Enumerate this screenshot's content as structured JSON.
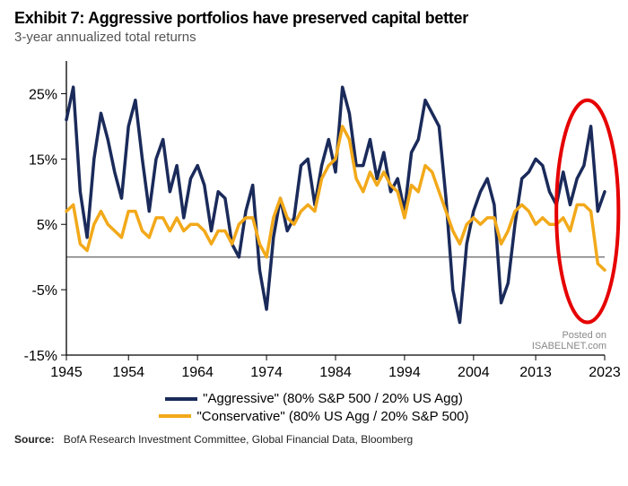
{
  "title": "Exhibit 7: Aggressive portfolios have preserved capital better",
  "subtitle": "3-year annualized total returns",
  "source_label": "Source:",
  "source_text": "BofA Research Investment Committee, Global Financial Data, Bloomberg",
  "watermark_top": "Posted on",
  "watermark_bottom": "ISABELNET.com",
  "legend_aggressive": "\"Aggressive\" (80% S&P 500 / 20% US Agg)",
  "legend_conservative": "\"Conservative\" (80% US Agg / 20% S&P 500)",
  "chart": {
    "type": "line",
    "background_color": "#ffffff",
    "axis_color": "#000000",
    "zero_line_color": "#555555",
    "font_family": "Arial",
    "tick_fontsize": 16,
    "title_fontsize": 18,
    "subtitle_fontsize": 15,
    "xlim": [
      1945,
      2023
    ],
    "ylim": [
      -15,
      30
    ],
    "yticks": [
      -15,
      -5,
      5,
      15,
      25
    ],
    "ytick_labels": [
      "-15%",
      "-5%",
      "5%",
      "15%",
      "25%"
    ],
    "xticks": [
      1945,
      1954,
      1964,
      1974,
      1984,
      1994,
      2004,
      2013,
      2023
    ],
    "xtick_labels": [
      "1945",
      "1954",
      "1964",
      "1974",
      "1984",
      "1994",
      "2004",
      "2013",
      "2023"
    ],
    "series": [
      {
        "key": "aggressive",
        "color": "#1a2a5a",
        "line_width": 3.5,
        "x": [
          1945,
          1946,
          1947,
          1948,
          1949,
          1950,
          1951,
          1952,
          1953,
          1954,
          1955,
          1956,
          1957,
          1958,
          1959,
          1960,
          1961,
          1962,
          1963,
          1964,
          1965,
          1966,
          1967,
          1968,
          1969,
          1970,
          1971,
          1972,
          1973,
          1974,
          1975,
          1976,
          1977,
          1978,
          1979,
          1980,
          1981,
          1982,
          1983,
          1984,
          1985,
          1986,
          1987,
          1988,
          1989,
          1990,
          1991,
          1992,
          1993,
          1994,
          1995,
          1996,
          1997,
          1998,
          1999,
          2000,
          2001,
          2002,
          2003,
          2004,
          2005,
          2006,
          2007,
          2008,
          2009,
          2010,
          2011,
          2012,
          2013,
          2014,
          2015,
          2016,
          2017,
          2018,
          2019,
          2020,
          2021,
          2022,
          2023
        ],
        "y": [
          21,
          26,
          10,
          3,
          15,
          22,
          18,
          13,
          9,
          20,
          24,
          15,
          7,
          15,
          18,
          10,
          14,
          6,
          12,
          14,
          11,
          4,
          10,
          9,
          2,
          0,
          7,
          11,
          -2,
          -8,
          3,
          9,
          4,
          6,
          14,
          15,
          8,
          14,
          18,
          13,
          26,
          22,
          14,
          14,
          18,
          12,
          16,
          10,
          12,
          7,
          16,
          18,
          24,
          22,
          20,
          9,
          -5,
          -10,
          2,
          7,
          10,
          12,
          8,
          -7,
          -4,
          5,
          12,
          13,
          15,
          14,
          10,
          8,
          13,
          8,
          12,
          14,
          20,
          7,
          10
        ]
      },
      {
        "key": "conservative",
        "color": "#f2a91a",
        "line_width": 3.5,
        "x": [
          1945,
          1946,
          1947,
          1948,
          1949,
          1950,
          1951,
          1952,
          1953,
          1954,
          1955,
          1956,
          1957,
          1958,
          1959,
          1960,
          1961,
          1962,
          1963,
          1964,
          1965,
          1966,
          1967,
          1968,
          1969,
          1970,
          1971,
          1972,
          1973,
          1974,
          1975,
          1976,
          1977,
          1978,
          1979,
          1980,
          1981,
          1982,
          1983,
          1984,
          1985,
          1986,
          1987,
          1988,
          1989,
          1990,
          1991,
          1992,
          1993,
          1994,
          1995,
          1996,
          1997,
          1998,
          1999,
          2000,
          2001,
          2002,
          2003,
          2004,
          2005,
          2006,
          2007,
          2008,
          2009,
          2010,
          2011,
          2012,
          2013,
          2014,
          2015,
          2016,
          2017,
          2018,
          2019,
          2020,
          2021,
          2022,
          2023
        ],
        "y": [
          7,
          8,
          2,
          1,
          5,
          7,
          5,
          4,
          3,
          7,
          7,
          4,
          3,
          6,
          6,
          4,
          6,
          4,
          5,
          5,
          4,
          2,
          4,
          4,
          2,
          5,
          6,
          6,
          2,
          0,
          6,
          9,
          6,
          5,
          7,
          8,
          7,
          12,
          14,
          15,
          20,
          18,
          12,
          10,
          13,
          11,
          13,
          11,
          10,
          6,
          11,
          10,
          14,
          13,
          10,
          7,
          4,
          2,
          5,
          6,
          5,
          6,
          6,
          2,
          4,
          7,
          8,
          7,
          5,
          6,
          5,
          5,
          6,
          4,
          8,
          8,
          7,
          -1,
          -2
        ]
      }
    ],
    "highlight": {
      "shape": "ellipse",
      "cx_year": 2020.5,
      "cy_pct": 7,
      "rx_years": 4.5,
      "ry_pct": 17,
      "stroke": "#e60000",
      "stroke_width": 4
    }
  }
}
